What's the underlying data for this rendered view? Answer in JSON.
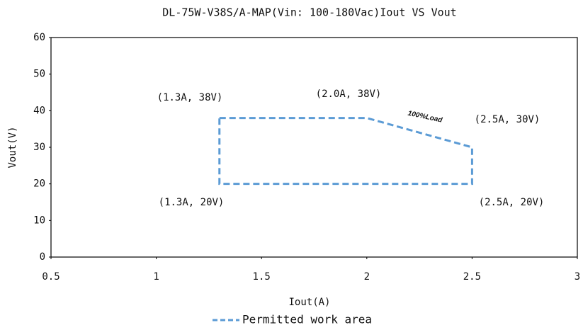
{
  "chart_data": {
    "type": "line",
    "title": "DL-75W-V38S/A-MAP(Vin: 100-180Vac)Iout VS Vout",
    "x_label": "Iout(A)",
    "y_label": "Vout(V)",
    "x": [
      1.3,
      2.0,
      2.5,
      2.5,
      1.3,
      1.3
    ],
    "series": [
      {
        "name": "Permitted work area",
        "color": "#5b9bd5",
        "values": [
          38,
          38,
          30,
          20,
          20,
          38
        ]
      }
    ],
    "xlim": [
      0.5,
      3
    ],
    "xticks": [
      0.5,
      1,
      1.5,
      2,
      2.5,
      3
    ],
    "ylim": [
      0,
      60
    ],
    "yticks": [
      0,
      10,
      20,
      30,
      40,
      50,
      60
    ],
    "annotations": [
      "(1.3A, 38V)",
      "(2.0A, 38V)",
      "100%Load",
      "(2.5A, 30V)",
      "(1.3A, 20V)",
      "(2.5A, 20V)"
    ],
    "legend": "bottom"
  }
}
